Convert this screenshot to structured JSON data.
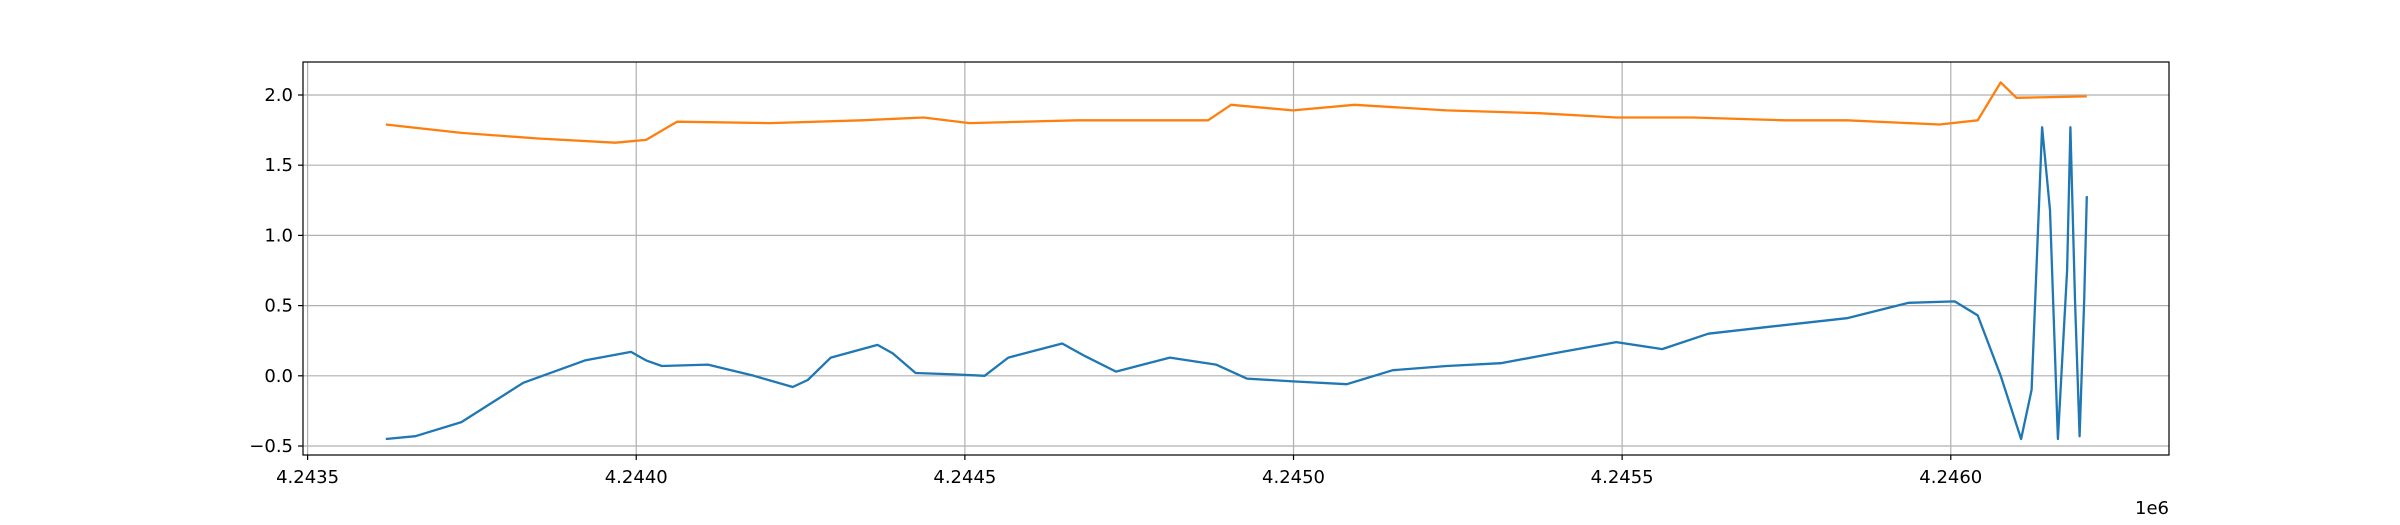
{
  "chart_data": {
    "type": "line",
    "xlim": [
      4243493,
      4246332
    ],
    "ylim": [
      -0.564,
      2.235
    ],
    "xticks": [
      {
        "value": 4243500,
        "label": "4.2435"
      },
      {
        "value": 4244000,
        "label": "4.2440"
      },
      {
        "value": 4244500,
        "label": "4.2445"
      },
      {
        "value": 4245000,
        "label": "4.2450"
      },
      {
        "value": 4245500,
        "label": "4.2455"
      },
      {
        "value": 4246000,
        "label": "4.2460"
      }
    ],
    "x_offset_label": "1e6",
    "yticks": [
      {
        "value": -0.5,
        "label": "−0.5"
      },
      {
        "value": 0,
        "label": "0.0"
      },
      0.5,
      {
        "value": 1,
        "label": "1.0"
      },
      1.5,
      {
        "value": 2,
        "label": "2.0"
      }
    ],
    "grid": true,
    "series": [
      {
        "color": "#1f77b4",
        "x": [
          4243619,
          4243664,
          4243734,
          4243828,
          4243922,
          4243992,
          4244015,
          4244039,
          4244109,
          4244179,
          4244238,
          4244261,
          4244296,
          4244367,
          4244390,
          4244425,
          4244484,
          4244530,
          4244566,
          4244648,
          4244683,
          4244730,
          4244812,
          4244882,
          4244929,
          4244999,
          4245081,
          4245151,
          4245233,
          4245315,
          4245397,
          4245491,
          4245561,
          4245631,
          4245725,
          4245842,
          4245936,
          4246006,
          4246041,
          4246076,
          4246107,
          4246123,
          4246139,
          4246151,
          4246163,
          4246177,
          4246182,
          4246189,
          4246196,
          4246203,
          4246207
        ],
        "values": [
          -0.45,
          -0.43,
          -0.33,
          -0.05,
          0.11,
          0.17,
          0.11,
          0.07,
          0.08,
          0.0,
          -0.08,
          -0.03,
          0.13,
          0.22,
          0.16,
          0.02,
          0.01,
          0.0,
          0.13,
          0.23,
          0.14,
          0.03,
          0.13,
          0.08,
          -0.02,
          -0.04,
          -0.06,
          0.04,
          0.07,
          0.09,
          0.16,
          0.24,
          0.19,
          0.3,
          0.35,
          0.41,
          0.52,
          0.53,
          0.43,
          0.0,
          -0.45,
          -0.1,
          1.77,
          1.18,
          -0.45,
          0.75,
          1.77,
          0.54,
          -0.43,
          0.54,
          1.28
        ]
      },
      {
        "color": "#ff7f0e",
        "x": [
          4243619,
          4243734,
          4243851,
          4243968,
          4244015,
          4244062,
          4244203,
          4244343,
          4244437,
          4244507,
          4244671,
          4244788,
          4244870,
          4244905,
          4244999,
          4245093,
          4245233,
          4245374,
          4245491,
          4245608,
          4245748,
          4245842,
          4245983,
          4246041,
          4246076,
          4246100,
          4246207
        ],
        "values": [
          1.79,
          1.73,
          1.69,
          1.66,
          1.68,
          1.81,
          1.8,
          1.82,
          1.84,
          1.8,
          1.82,
          1.82,
          1.82,
          1.93,
          1.89,
          1.93,
          1.89,
          1.87,
          1.84,
          1.84,
          1.82,
          1.82,
          1.79,
          1.82,
          2.09,
          1.98,
          1.99
        ]
      }
    ]
  }
}
